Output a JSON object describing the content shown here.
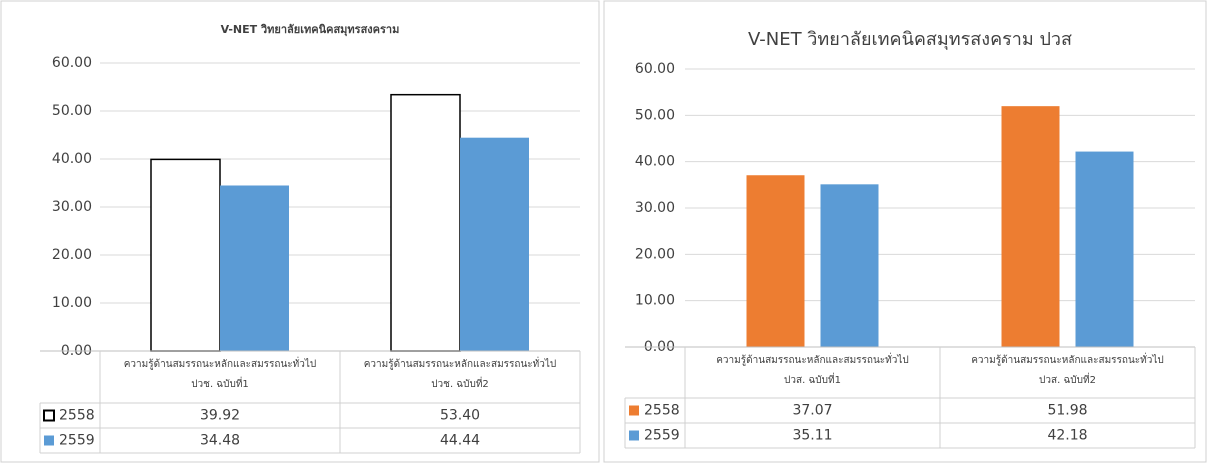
{
  "chart_data": [
    {
      "type": "bar",
      "title": "V-NET วิทยาลัยเทคนิคสมุทรสงคราม",
      "categories": [
        [
          "ความรู้ด้านสมรรถนะหลักและสมรรถนะทั่วไป",
          "ปวช. ฉบับที่1"
        ],
        [
          "ความรู้ด้านสมรรถนะหลักและสมรรถนะทั่วไป",
          "ปวช. ฉบับที่2"
        ]
      ],
      "series": [
        {
          "name": "2558",
          "color": "#ffffff",
          "edgecolor": "#000000",
          "values": [
            39.92,
            53.4
          ],
          "value_labels": [
            "39.92",
            "53.40"
          ]
        },
        {
          "name": "2559",
          "color": "#5b9bd5",
          "values": [
            34.48,
            44.44
          ],
          "value_labels": [
            "34.48",
            "44.44"
          ]
        }
      ],
      "ylim": [
        0,
        60
      ],
      "yticks": [
        {
          "value": 0,
          "label": "0.00"
        },
        {
          "value": 10,
          "label": "10.00"
        },
        {
          "value": 20,
          "label": "20.00"
        },
        {
          "value": 30,
          "label": "30.00"
        },
        {
          "value": 40,
          "label": "40.00"
        },
        {
          "value": 50,
          "label": "50.00"
        },
        {
          "value": 60,
          "label": "60.00"
        }
      ],
      "grid": true
    },
    {
      "type": "bar",
      "title": "V-NET วิทยาลัยเทคนิคสมุทรสงคราม ปวส",
      "categories": [
        [
          "ความรู้ด้านสมรรถนะหลักและสมรรถนะทั่วไป",
          "ปวส. ฉบับที่1"
        ],
        [
          "ความรู้ด้านสมรรถนะหลักและสมรรถนะทั่วไป",
          "ปวส. ฉบับที่2"
        ]
      ],
      "series": [
        {
          "name": "2558",
          "color": "#ed7d31",
          "values": [
            37.07,
            51.98
          ],
          "value_labels": [
            "37.07",
            "51.98"
          ]
        },
        {
          "name": "2559",
          "color": "#5b9bd5",
          "values": [
            35.11,
            42.18
          ],
          "value_labels": [
            "35.11",
            "42.18"
          ]
        }
      ],
      "ylim": [
        0,
        60
      ],
      "yticks": [
        {
          "value": 0,
          "label": "0.00"
        },
        {
          "value": 10,
          "label": "10.00"
        },
        {
          "value": 20,
          "label": "20.00"
        },
        {
          "value": 30,
          "label": "30.00"
        },
        {
          "value": 40,
          "label": "40.00"
        },
        {
          "value": 50,
          "label": "50.00"
        },
        {
          "value": 60,
          "label": "60.00"
        }
      ],
      "grid": true
    }
  ]
}
